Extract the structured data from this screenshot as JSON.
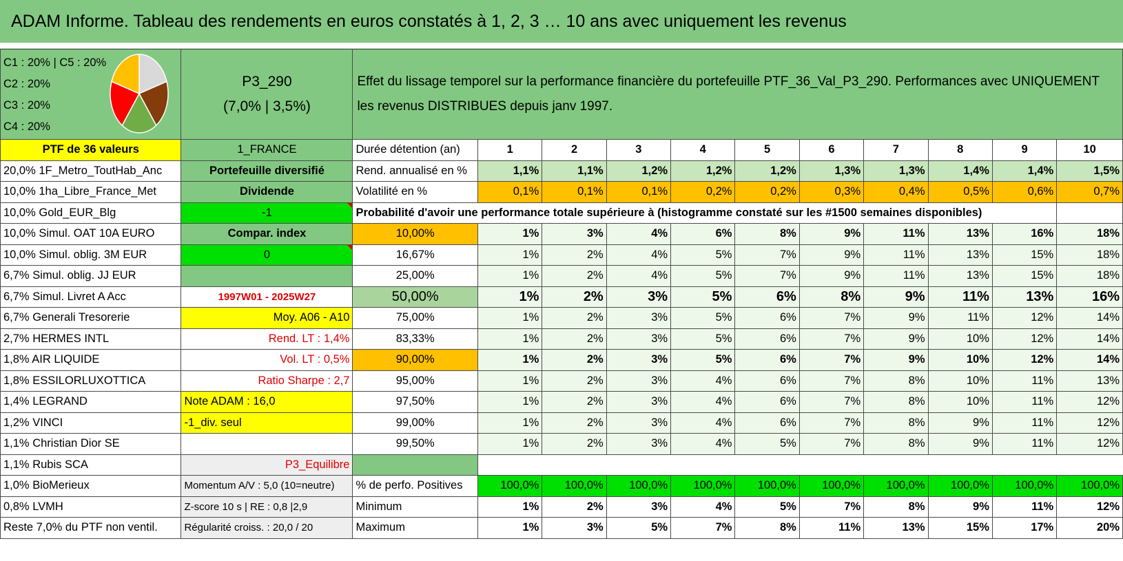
{
  "title": "ADAM Informe. Tableau des rendements en euros constatés à 1, 2, 3 … 10 ans avec uniquement les revenus",
  "legend": {
    "lines": [
      "C1 : 20% | C5 : 20%",
      "C2 : 20%",
      "C3 : 20%",
      "C4 : 20%"
    ],
    "pie_shares": [
      20,
      20,
      20,
      20,
      20
    ],
    "pie_colors": [
      "#d9d9d9",
      "#843c0c",
      "#70ad47",
      "#ff0000",
      "#ffc000"
    ]
  },
  "portfolio": {
    "code": "P3_290",
    "params": "(7,0% | 3,5%)",
    "description": "Effet du lissage temporel sur la performance financière du portefeuille PTF_36_Val_P3_290. Performances avec UNIQUEMENT les revenus DISTRIBUES depuis janv 1997.",
    "size_label": "PTF de 36 valeurs",
    "country": "1_FRANCE"
  },
  "holdings": [
    "20,0% 1F_Metro_ToutHab_Anc",
    "10,0% 1ha_Libre_France_Met",
    "10,0% Gold_EUR_Blg",
    "10,0% Simul. OAT 10A EURO",
    "10,0% Simul. oblig. 3M EUR",
    "6,7% Simul. oblig. JJ EUR",
    "6,7% Simul. Livret A Acc",
    "6,7% Generali Tresorerie",
    "2,7% HERMES INTL",
    "1,8% AIR LIQUIDE",
    "1,8% ESSILORLUXOTTICA",
    "1,4% LEGRAND",
    "1,2% VINCI",
    "1,1% Christian Dior SE",
    "1,1% Rubis SCA",
    "1,0% BioMerieux",
    "0,8% LVMH",
    "Reste 7,0% du PTF non ventil."
  ],
  "info": {
    "type": "Portefeuille diversifié",
    "mode": "Dividende",
    "code1": "-1",
    "compar": "Compar. index",
    "code2": "0",
    "blank": "",
    "period": "1997W01 - 2025W27",
    "moy": "Moy. A06 - A10",
    "rend_lt": "Rend. LT : 1,4%",
    "vol_lt": "Vol. LT : 0,5%",
    "sharpe": "Ratio Sharpe : 2,7",
    "note": "Note ADAM : 16,0",
    "div": "-1_div. seul",
    "blank2": "",
    "profile": "P3_Equilibre",
    "momentum": "Momentum A/V : 5,0 (10=neutre)",
    "zscore": "Z-score 10 s | RE : 0,8 |2,9",
    "regularite": "Régularité croiss. : 20,0 / 20"
  },
  "labels": {
    "duree": "Durée détention (an)",
    "rend": "Rend. annualisé en %",
    "vol": "Volatilité en %",
    "proba": "Probabilité d'avoir une performance totale supérieure à (histogramme constaté sur les #1500 semaines disponibles)",
    "pct_pos": "% de perfo. Positives",
    "min": "Minimum",
    "max": "Maximum"
  },
  "years": [
    "1",
    "2",
    "3",
    "4",
    "5",
    "6",
    "7",
    "8",
    "9",
    "10"
  ],
  "rend": [
    "1,1%",
    "1,1%",
    "1,2%",
    "1,2%",
    "1,2%",
    "1,3%",
    "1,3%",
    "1,4%",
    "1,4%",
    "1,5%"
  ],
  "vol": [
    "0,1%",
    "0,1%",
    "0,1%",
    "0,2%",
    "0,2%",
    "0,3%",
    "0,4%",
    "0,5%",
    "0,6%",
    "0,7%"
  ],
  "proba_rows": [
    {
      "p": "10,00%",
      "v": [
        "1%",
        "3%",
        "4%",
        "6%",
        "8%",
        "9%",
        "11%",
        "13%",
        "16%",
        "18%"
      ]
    },
    {
      "p": "16,67%",
      "v": [
        "1%",
        "2%",
        "4%",
        "5%",
        "7%",
        "9%",
        "11%",
        "13%",
        "15%",
        "18%"
      ]
    },
    {
      "p": "25,00%",
      "v": [
        "1%",
        "2%",
        "4%",
        "5%",
        "7%",
        "9%",
        "11%",
        "13%",
        "15%",
        "18%"
      ]
    },
    {
      "p": "50,00%",
      "v": [
        "1%",
        "2%",
        "3%",
        "5%",
        "6%",
        "8%",
        "9%",
        "11%",
        "13%",
        "16%"
      ]
    },
    {
      "p": "75,00%",
      "v": [
        "1%",
        "2%",
        "3%",
        "5%",
        "6%",
        "7%",
        "9%",
        "11%",
        "12%",
        "14%"
      ]
    },
    {
      "p": "83,33%",
      "v": [
        "1%",
        "2%",
        "3%",
        "5%",
        "6%",
        "7%",
        "9%",
        "10%",
        "12%",
        "14%"
      ]
    },
    {
      "p": "90,00%",
      "v": [
        "1%",
        "2%",
        "3%",
        "5%",
        "6%",
        "7%",
        "9%",
        "10%",
        "12%",
        "14%"
      ]
    },
    {
      "p": "95,00%",
      "v": [
        "1%",
        "2%",
        "3%",
        "4%",
        "6%",
        "7%",
        "8%",
        "10%",
        "11%",
        "13%"
      ]
    },
    {
      "p": "97,50%",
      "v": [
        "1%",
        "2%",
        "3%",
        "4%",
        "6%",
        "7%",
        "8%",
        "10%",
        "11%",
        "12%"
      ]
    },
    {
      "p": "99,00%",
      "v": [
        "1%",
        "2%",
        "3%",
        "4%",
        "6%",
        "7%",
        "8%",
        "9%",
        "11%",
        "12%"
      ]
    },
    {
      "p": "99,50%",
      "v": [
        "1%",
        "2%",
        "3%",
        "4%",
        "5%",
        "7%",
        "8%",
        "9%",
        "11%",
        "12%"
      ]
    }
  ],
  "positives": [
    "100,0%",
    "100,0%",
    "100,0%",
    "100,0%",
    "100,0%",
    "100,0%",
    "100,0%",
    "100,0%",
    "100,0%",
    "100,0%"
  ],
  "minimum": [
    "1%",
    "2%",
    "3%",
    "4%",
    "5%",
    "7%",
    "8%",
    "9%",
    "11%",
    "12%"
  ],
  "maximum": [
    "1%",
    "3%",
    "5%",
    "7%",
    "8%",
    "11%",
    "13%",
    "15%",
    "17%",
    "20%"
  ]
}
